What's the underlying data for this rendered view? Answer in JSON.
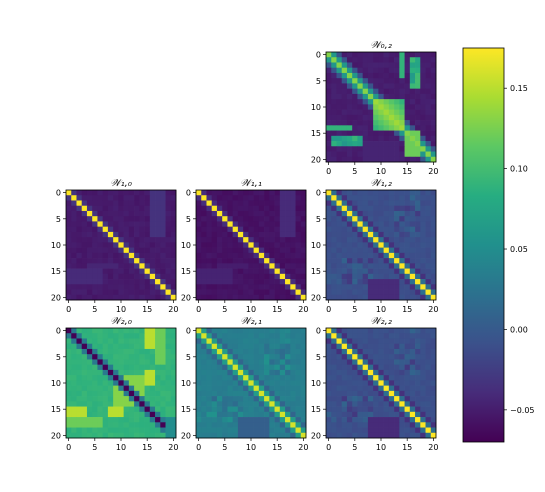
{
  "chart_data": {
    "type": "heatmap",
    "colormap": "viridis",
    "grid": false,
    "matrix_size": 21,
    "color_range": [
      -0.07,
      0.175
    ],
    "colorbar": {
      "location": "right",
      "ticks": [
        -0.05,
        0.0,
        0.05,
        0.1,
        0.15
      ],
      "tick_labels": [
        "−0.05",
        "0.00",
        "0.05",
        "0.10",
        "0.15"
      ]
    },
    "axis_ticks": {
      "values": [
        0,
        5,
        10,
        15,
        20
      ],
      "labels": [
        "0",
        "5",
        "10",
        "15",
        "20"
      ]
    },
    "panels": [
      {
        "id": "W02",
        "row": 0,
        "col": 2,
        "title": "𝒲₀,₂",
        "base": -0.05,
        "diagonal": 0.13,
        "mode": "interaction",
        "block_value": 0.14,
        "block_range": [
          9,
          14
        ],
        "band_value": 0.1
      },
      {
        "id": "W10",
        "row": 1,
        "col": 0,
        "title": "𝒲₁,₀",
        "base": -0.052,
        "diagonal": 0.175,
        "mode": "weak_structure"
      },
      {
        "id": "W11",
        "row": 1,
        "col": 1,
        "title": "𝒲₁,₁",
        "base": -0.058,
        "diagonal": 0.175,
        "mode": "weak_structure"
      },
      {
        "id": "W12",
        "row": 1,
        "col": 2,
        "title": "𝒲₁,₂",
        "base": -0.01,
        "diagonal": 0.175,
        "mode": "diag_mid"
      },
      {
        "id": "W20",
        "row": 2,
        "col": 0,
        "title": "𝒲₂,₀",
        "base": 0.09,
        "diagonal": -0.07,
        "mode": "inverted",
        "block_value": 0.13,
        "block_range": [
          9,
          14
        ]
      },
      {
        "id": "W21",
        "row": 2,
        "col": 1,
        "title": "𝒲₂,₁",
        "base": 0.035,
        "diagonal": 0.16,
        "mode": "diag_mid"
      },
      {
        "id": "W22",
        "row": 2,
        "col": 2,
        "title": "𝒲₂,₂",
        "base": -0.01,
        "diagonal": 0.175,
        "mode": "diag_mid"
      }
    ]
  }
}
